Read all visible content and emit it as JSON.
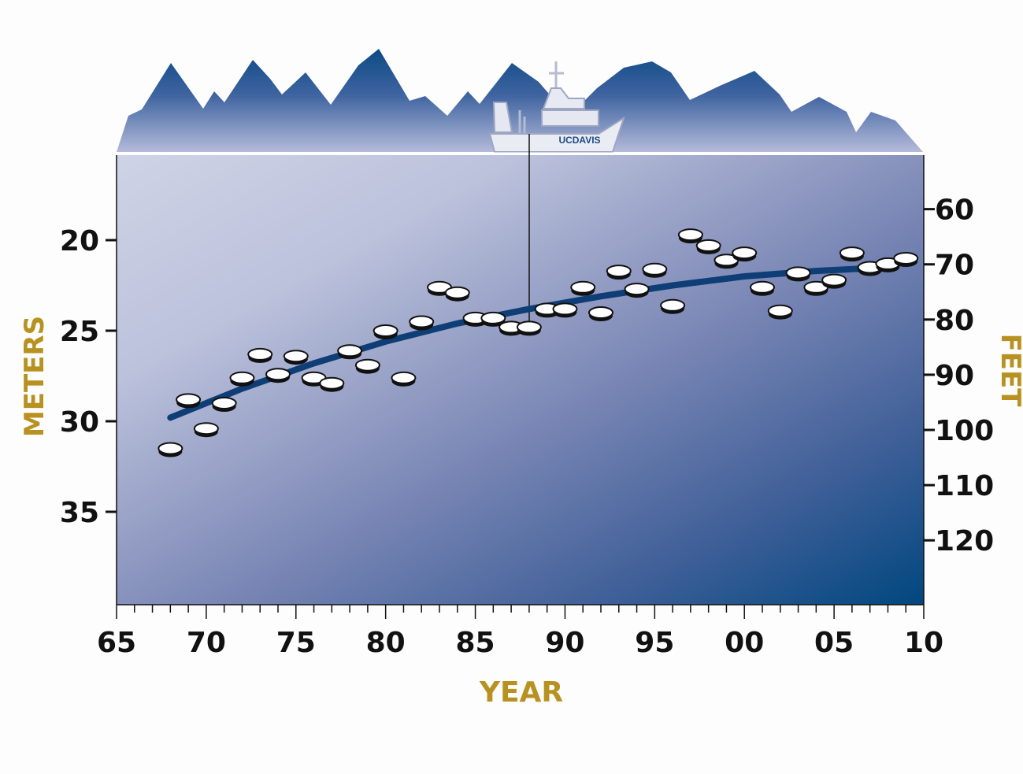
{
  "chart_data": {
    "type": "scatter",
    "title": "",
    "xlabel": "YEAR",
    "ylabel_left": "METERS",
    "ylabel_right": "FEET",
    "x_ticks": [
      "65",
      "70",
      "75",
      "80",
      "85",
      "90",
      "95",
      "00",
      "05",
      "10"
    ],
    "y_left_ticks": [
      "20",
      "25",
      "30",
      "35"
    ],
    "y_right_ticks": [
      "60",
      "70",
      "80",
      "90",
      "100",
      "110",
      "120"
    ],
    "xlim": [
      1965,
      2010
    ],
    "ylim_meters": [
      40,
      16
    ],
    "y_right_unit": "feet",
    "points": [
      {
        "x": 1968,
        "y": 31.5
      },
      {
        "x": 1969,
        "y": 28.8
      },
      {
        "x": 1970,
        "y": 30.4
      },
      {
        "x": 1971,
        "y": 29.0
      },
      {
        "x": 1972,
        "y": 27.6
      },
      {
        "x": 1973,
        "y": 26.3
      },
      {
        "x": 1974,
        "y": 27.4
      },
      {
        "x": 1975,
        "y": 26.4
      },
      {
        "x": 1976,
        "y": 27.6
      },
      {
        "x": 1977,
        "y": 27.9
      },
      {
        "x": 1978,
        "y": 26.1
      },
      {
        "x": 1979,
        "y": 26.9
      },
      {
        "x": 1980,
        "y": 25.0
      },
      {
        "x": 1981,
        "y": 27.6
      },
      {
        "x": 1982,
        "y": 24.5
      },
      {
        "x": 1983,
        "y": 22.6
      },
      {
        "x": 1984,
        "y": 22.9
      },
      {
        "x": 1985,
        "y": 24.3
      },
      {
        "x": 1986,
        "y": 24.3
      },
      {
        "x": 1987,
        "y": 24.8
      },
      {
        "x": 1988,
        "y": 24.8
      },
      {
        "x": 1989,
        "y": 23.8
      },
      {
        "x": 1990,
        "y": 23.8
      },
      {
        "x": 1991,
        "y": 22.6
      },
      {
        "x": 1992,
        "y": 24.0
      },
      {
        "x": 1993,
        "y": 21.7
      },
      {
        "x": 1994,
        "y": 22.7
      },
      {
        "x": 1995,
        "y": 21.6
      },
      {
        "x": 1996,
        "y": 23.6
      },
      {
        "x": 1997,
        "y": 19.7
      },
      {
        "x": 1998,
        "y": 20.3
      },
      {
        "x": 1999,
        "y": 21.1
      },
      {
        "x": 2000,
        "y": 20.7
      },
      {
        "x": 2001,
        "y": 22.6
      },
      {
        "x": 2002,
        "y": 23.9
      },
      {
        "x": 2003,
        "y": 21.8
      },
      {
        "x": 2004,
        "y": 22.6
      },
      {
        "x": 2005,
        "y": 22.2
      },
      {
        "x": 2006,
        "y": 20.7
      },
      {
        "x": 2007,
        "y": 21.5
      },
      {
        "x": 2008,
        "y": 21.3
      },
      {
        "x": 2009,
        "y": 21.0
      }
    ],
    "trend": {
      "x": [
        1968,
        1972,
        1976,
        1980,
        1984,
        1988,
        1992,
        1996,
        2000,
        2004,
        2008
      ],
      "y": [
        29.8,
        28.2,
        26.8,
        25.6,
        24.6,
        23.8,
        23.1,
        22.5,
        22.0,
        21.7,
        21.5
      ]
    },
    "colors": {
      "trend": "#0e3e75",
      "axis_title": "#b89221",
      "mountains": "#0c4a85",
      "water_light": "#c5cbe2",
      "water_dark": "#00477f"
    }
  },
  "decor": {
    "boat_label": "UCDAVIS",
    "boat_icon": "research-boat-icon",
    "mountains_icon": "mountain-range-icon"
  }
}
